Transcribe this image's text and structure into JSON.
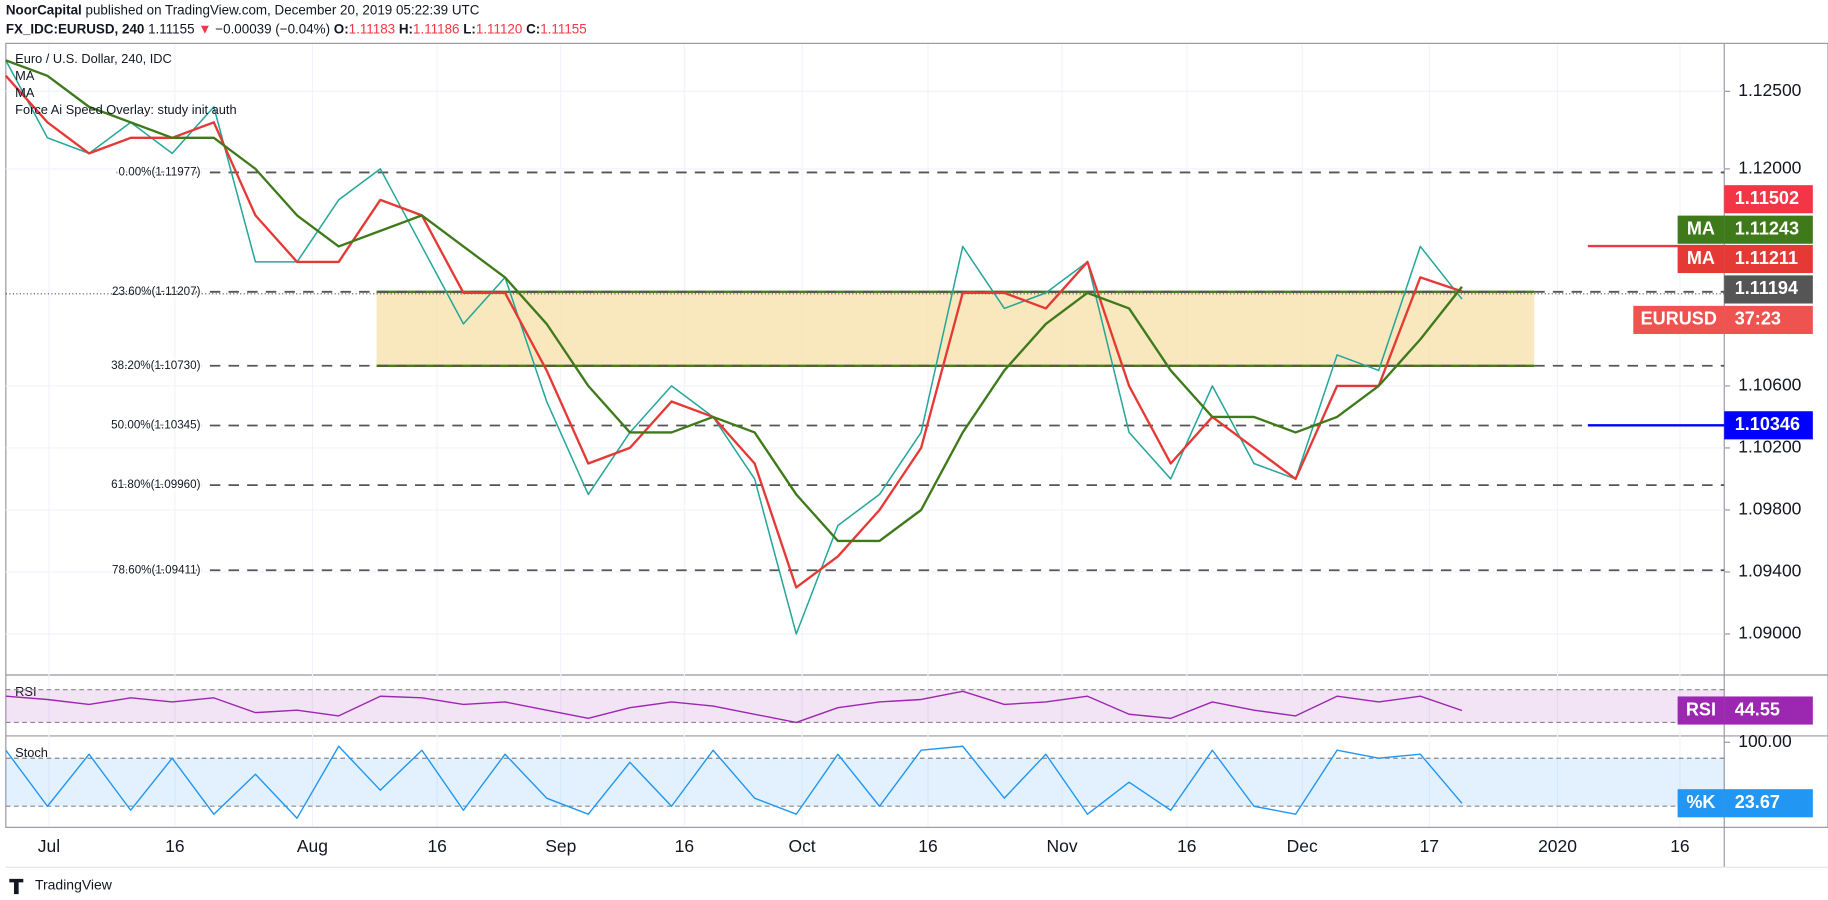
{
  "header": {
    "publisher": "NoorCapital",
    "published": "published on TradingView.com, December 20, 2019 05:22:39 UTC",
    "symbol": "FX_IDC:EURUSD, 240",
    "last": "1.11155",
    "arrow": "▼",
    "change": "−0.00039 (−0.04%)",
    "ohlc": [
      {
        "label": "O:",
        "value": "1.11183"
      },
      {
        "label": "H:",
        "value": "1.11186"
      },
      {
        "label": "L:",
        "value": "1.11120"
      },
      {
        "label": "C:",
        "value": "1.11155"
      }
    ]
  },
  "legend": [
    "Euro / U.S. Dollar, 240, IDC",
    "MA",
    "MA",
    "Force Ai Speed Overlay: study init auth"
  ],
  "chart_data": {
    "type": "line",
    "ylim": [
      1.08743,
      1.12802
    ],
    "yticks": [
      {
        "value": 1.125,
        "label": "1.12500"
      },
      {
        "value": 1.12,
        "label": "1.12000"
      },
      {
        "value": 1.106,
        "label": "1.10600"
      },
      {
        "value": 1.102,
        "label": "1.10200"
      },
      {
        "value": 1.098,
        "label": "1.09800"
      },
      {
        "value": 1.094,
        "label": "1.09400"
      },
      {
        "value": 1.09,
        "label": "1.09000"
      }
    ],
    "xaxis_labels": [
      "Jul",
      "16",
      "Aug",
      "16",
      "Sep",
      "16",
      "Oct",
      "16",
      "Nov",
      "16",
      "Dec",
      "17",
      "2020",
      "16"
    ],
    "grid": true,
    "series": [
      {
        "name": "Euro / U.S. Dollar",
        "color": "#26a69a",
        "values": [
          1.127,
          1.122,
          1.121,
          1.123,
          1.121,
          1.124,
          1.114,
          1.114,
          1.118,
          1.12,
          1.115,
          1.11,
          1.113,
          1.105,
          1.099,
          1.103,
          1.106,
          1.104,
          1.1,
          1.09,
          1.097,
          1.099,
          1.103,
          1.115,
          1.111,
          1.112,
          1.114,
          1.103,
          1.1,
          1.106,
          1.101,
          1.1,
          1.108,
          1.107,
          1.115,
          1.1116
        ]
      },
      {
        "name": "MA",
        "color": "#e53935",
        "values": [
          1.126,
          1.123,
          1.121,
          1.122,
          1.122,
          1.123,
          1.117,
          1.114,
          1.114,
          1.118,
          1.117,
          1.112,
          1.112,
          1.107,
          1.101,
          1.102,
          1.105,
          1.104,
          1.101,
          1.093,
          1.095,
          1.098,
          1.102,
          1.112,
          1.112,
          1.111,
          1.114,
          1.106,
          1.101,
          1.104,
          1.102,
          1.1,
          1.106,
          1.106,
          1.113,
          1.1121
        ]
      },
      {
        "name": "MA",
        "color": "#3f7a1a",
        "values": [
          1.127,
          1.126,
          1.124,
          1.123,
          1.122,
          1.122,
          1.12,
          1.117,
          1.115,
          1.116,
          1.117,
          1.115,
          1.113,
          1.11,
          1.106,
          1.103,
          1.103,
          1.104,
          1.103,
          1.099,
          1.096,
          1.096,
          1.098,
          1.103,
          1.107,
          1.11,
          1.112,
          1.111,
          1.107,
          1.104,
          1.104,
          1.103,
          1.104,
          1.106,
          1.109,
          1.1124
        ]
      }
    ],
    "fib_levels": [
      {
        "label": "0.00%(1.11977)",
        "value": 1.11977
      },
      {
        "label": "23.60%(1.11207)",
        "value": 1.11207
      },
      {
        "label": "38.20%(1.10730)",
        "value": 1.1073
      },
      {
        "label": "50.00%(1.10345)",
        "value": 1.10345
      },
      {
        "label": "61.80%(1.09960)",
        "value": 1.0996
      },
      {
        "label": "78.60%(1.09411)",
        "value": 1.09411
      }
    ],
    "zone_color": "#f7dfa8",
    "current_price": 1.11194,
    "badges": [
      {
        "text": "1.11502",
        "value": 1.11502,
        "color": "#f23645",
        "line": true
      },
      {
        "label": "MA",
        "text": "1.11243",
        "value": 1.11243,
        "color": "#3f7a1a"
      },
      {
        "label": "MA",
        "text": "1.11211",
        "value": 1.11211,
        "color": "#e53935"
      },
      {
        "text": "1.11194",
        "value": 1.11194,
        "color": "#555555"
      },
      {
        "label": "EURUSD",
        "text": "37:23",
        "color": "#ef5350"
      },
      {
        "text": "1.10346",
        "value": 1.10346,
        "color": "#0000ff",
        "line": true
      }
    ]
  },
  "rsi": {
    "name": "RSI",
    "color": "#9c27b0",
    "ylim": [
      15,
      85
    ],
    "bands": [
      70,
      30
    ],
    "values": [
      62,
      58,
      52,
      60,
      55,
      60,
      42,
      45,
      38,
      62,
      60,
      52,
      55,
      45,
      35,
      48,
      55,
      50,
      40,
      30,
      48,
      55,
      58,
      68,
      52,
      55,
      62,
      40,
      35,
      55,
      45,
      38,
      62,
      55,
      62,
      44.55
    ],
    "badge": {
      "label": "RSI",
      "text": "44.55",
      "color": "#9c27b0"
    }
  },
  "stoch": {
    "name": "Stoch",
    "color": "#2196f3",
    "ylim": [
      -5,
      105
    ],
    "bands": [
      80,
      20
    ],
    "yticks": [
      {
        "value": 100,
        "label": "100.00"
      }
    ],
    "values": [
      90,
      20,
      85,
      15,
      80,
      10,
      60,
      5,
      95,
      40,
      90,
      15,
      85,
      30,
      10,
      75,
      20,
      90,
      30,
      10,
      85,
      20,
      90,
      95,
      30,
      85,
      10,
      50,
      15,
      90,
      20,
      10,
      90,
      80,
      85,
      23.67
    ],
    "badge": {
      "label": "%K",
      "text": "23.67",
      "color": "#2196f3"
    }
  },
  "footer": "TradingView"
}
